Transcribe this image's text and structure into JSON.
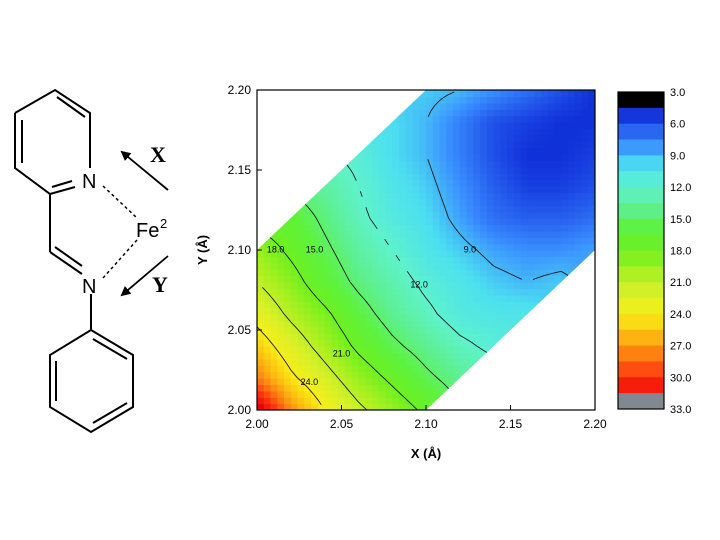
{
  "molecule": {
    "atoms": {
      "n_pyridine": "N",
      "n_imine": "N",
      "metal": "Fe",
      "metal_charge": "2"
    },
    "arrows": {
      "x": "X",
      "y": "Y"
    }
  },
  "chart_data": {
    "type": "heatmap",
    "title": "",
    "xlabel": "X (Å)",
    "ylabel": "Y (Å)",
    "xlim": [
      2.0,
      2.2
    ],
    "ylim": [
      2.0,
      2.2
    ],
    "x_ticks": [
      "2.00",
      "2.05",
      "2.10",
      "2.15",
      "2.20"
    ],
    "y_ticks": [
      "2.00",
      "2.05",
      "2.10",
      "2.15",
      "2.20"
    ],
    "x_tick_values": [
      2.0,
      2.05,
      2.1,
      2.15,
      2.2
    ],
    "y_tick_values": [
      2.0,
      2.05,
      2.1,
      2.15,
      2.2
    ],
    "valid_region": "|X - Y| <= 0.10",
    "x": [
      2.0,
      2.02,
      2.04,
      2.06,
      2.08,
      2.1,
      2.12,
      2.14,
      2.16,
      2.18,
      2.2
    ],
    "y": [
      2.0,
      2.02,
      2.04,
      2.06,
      2.08,
      2.1,
      2.12,
      2.14,
      2.16,
      2.18,
      2.2
    ],
    "z": [
      [
        33.0,
        27.5,
        24.0,
        21.5,
        19.5,
        17.5,
        null,
        null,
        null,
        null,
        null
      ],
      [
        28.0,
        24.5,
        22.0,
        19.5,
        17.5,
        15.5,
        14.0,
        null,
        null,
        null,
        null
      ],
      [
        25.5,
        22.5,
        20.0,
        17.5,
        15.5,
        14.0,
        12.5,
        11.5,
        null,
        null,
        null
      ],
      [
        23.0,
        20.5,
        18.5,
        16.0,
        14.0,
        12.5,
        11.0,
        10.5,
        10.5,
        null,
        null
      ],
      [
        21.0,
        19.0,
        16.5,
        14.5,
        13.0,
        11.5,
        10.5,
        9.5,
        9.0,
        9.5,
        null
      ],
      [
        19.5,
        17.5,
        15.5,
        13.5,
        12.0,
        10.5,
        9.5,
        8.5,
        8.0,
        8.0,
        8.5
      ],
      [
        null,
        16.5,
        14.5,
        12.5,
        11.0,
        10.0,
        8.5,
        7.0,
        6.5,
        6.5,
        7.0
      ],
      [
        null,
        null,
        13.5,
        12.0,
        10.5,
        9.5,
        8.0,
        6.5,
        5.5,
        5.5,
        6.0
      ],
      [
        null,
        null,
        null,
        11.5,
        10.0,
        9.0,
        7.5,
        6.0,
        5.0,
        5.0,
        5.5
      ],
      [
        null,
        null,
        null,
        null,
        10.0,
        9.0,
        7.5,
        6.0,
        5.5,
        5.0,
        5.0
      ],
      [
        null,
        null,
        null,
        null,
        null,
        9.5,
        9.0,
        8.0,
        7.0,
        6.0,
        5.0
      ]
    ],
    "contour_levels": [
      9.0,
      12.0,
      15.0,
      18.0,
      21.0,
      24.0
    ],
    "contour_labels": [
      {
        "text": "18.0",
        "x": 2.011,
        "y": 2.1
      },
      {
        "text": "15.0",
        "x": 2.034,
        "y": 2.1
      },
      {
        "text": "9.0",
        "x": 2.126,
        "y": 2.1
      },
      {
        "text": "12.0",
        "x": 2.096,
        "y": 2.078
      },
      {
        "text": "21.0",
        "x": 2.05,
        "y": 2.035
      },
      {
        "text": "24.0",
        "x": 2.031,
        "y": 2.017
      }
    ],
    "colorbar": {
      "min": 3.0,
      "max": 33.0,
      "labels": [
        "3.0",
        "6.0",
        "9.0",
        "12.0",
        "15.0",
        "18.0",
        "21.0",
        "24.0",
        "27.0",
        "30.0",
        "33.0"
      ],
      "label_values": [
        3,
        6,
        9,
        12,
        15,
        18,
        21,
        24,
        27,
        30,
        33
      ],
      "colors": [
        {
          "v": 3,
          "c": "#000000"
        },
        {
          "v": 4,
          "c": "#0010c8"
        },
        {
          "v": 6,
          "c": "#1f4fe8"
        },
        {
          "v": 8,
          "c": "#3a8fff"
        },
        {
          "v": 10,
          "c": "#4ce0f0"
        },
        {
          "v": 12,
          "c": "#5ef2cc"
        },
        {
          "v": 14,
          "c": "#5ef090"
        },
        {
          "v": 16,
          "c": "#5ef23c"
        },
        {
          "v": 18,
          "c": "#6ef020"
        },
        {
          "v": 20,
          "c": "#a8f020"
        },
        {
          "v": 22,
          "c": "#d8f028"
        },
        {
          "v": 24,
          "c": "#f8ee18"
        },
        {
          "v": 26,
          "c": "#ffbb10"
        },
        {
          "v": 28,
          "c": "#ff7a10"
        },
        {
          "v": 30,
          "c": "#ff3010"
        },
        {
          "v": 32,
          "c": "#e80000"
        },
        {
          "v": 33,
          "c": "#808890"
        }
      ]
    }
  }
}
